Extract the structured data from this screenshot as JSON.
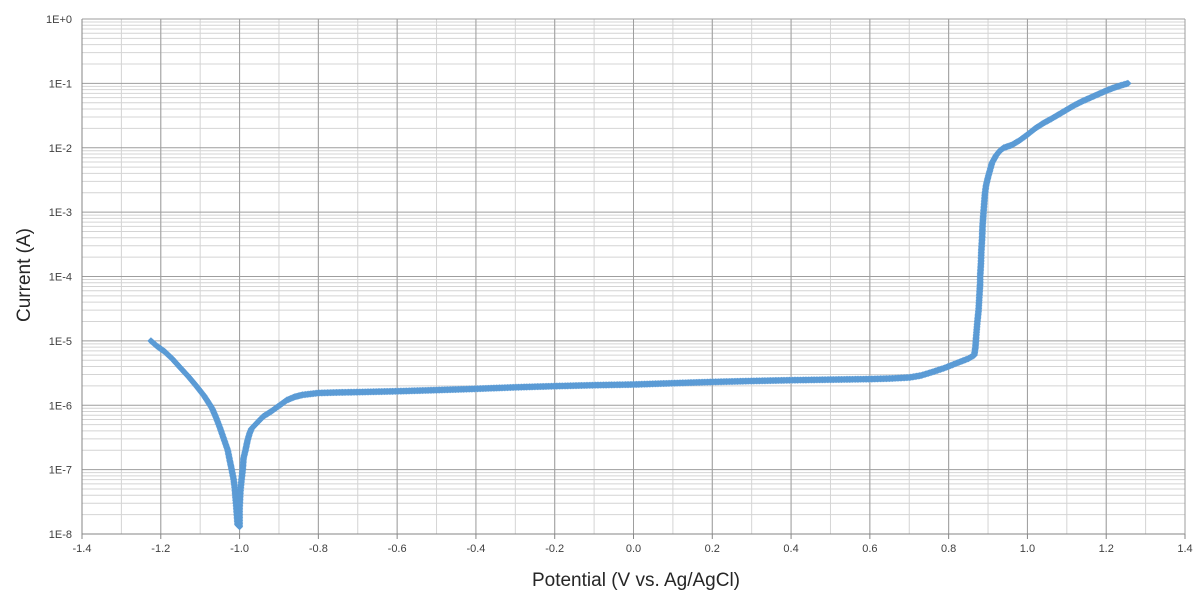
{
  "chart_data": {
    "type": "scatter",
    "title": "",
    "xlabel": "Potential (V vs. Ag/AgCl)",
    "ylabel": "Current (A)",
    "xlim": [
      -1.4,
      1.4
    ],
    "x_major_step": 0.2,
    "x_minor_step": 0.1,
    "ylim_log10": [
      -8,
      0
    ],
    "yscale": "log",
    "grid": true,
    "legend": "none",
    "x_tick_labels": [
      "-1.4",
      "-1.2",
      "-1.0",
      "-0.8",
      "-0.6",
      "-0.4",
      "-0.2",
      "0.0",
      "0.2",
      "0.4",
      "0.6",
      "0.8",
      "1.0",
      "1.2",
      "1.4"
    ],
    "y_tick_labels": [
      "1E-8",
      "1E-7",
      "1E-6",
      "1E-5",
      "1E-4",
      "1E-3",
      "1E-2",
      "1E-1",
      "1E+0"
    ],
    "colors": {
      "marker": "#5B9BD5",
      "major_grid": "#9e9e9e",
      "minor_grid": "#d4d4d4",
      "axis": "#868686"
    },
    "series": [
      {
        "marker": "diamond",
        "points": [
          [
            -1.225,
            1e-05
          ],
          [
            -1.21,
            8.3e-06
          ],
          [
            -1.19,
            6.8e-06
          ],
          [
            -1.17,
            5.2e-06
          ],
          [
            -1.15,
            3.8e-06
          ],
          [
            -1.13,
            2.8e-06
          ],
          [
            -1.11,
            2e-06
          ],
          [
            -1.09,
            1.4e-06
          ],
          [
            -1.07,
            9e-07
          ],
          [
            -1.06,
            6.5e-07
          ],
          [
            -1.05,
            4.5e-07
          ],
          [
            -1.04,
            3e-07
          ],
          [
            -1.03,
            2e-07
          ],
          [
            -1.025,
            1.4e-07
          ],
          [
            -1.02,
            1e-07
          ],
          [
            -1.015,
            7e-08
          ],
          [
            -1.012,
            5e-08
          ],
          [
            -1.01,
            3.5e-08
          ],
          [
            -1.008,
            2.5e-08
          ],
          [
            -1.005,
            1.4e-08
          ],
          [
            -1.0,
            1.3e-08
          ],
          [
            -1.0,
            2.5e-08
          ],
          [
            -0.998,
            4.5e-08
          ],
          [
            -0.995,
            7e-08
          ],
          [
            -0.992,
            1e-07
          ],
          [
            -0.99,
            1.5e-07
          ],
          [
            -0.985,
            2e-07
          ],
          [
            -0.98,
            2.8e-07
          ],
          [
            -0.975,
            3.6e-07
          ],
          [
            -0.97,
            4.3e-07
          ],
          [
            -0.96,
            5e-07
          ],
          [
            -0.95,
            5.8e-07
          ],
          [
            -0.94,
            6.7e-07
          ],
          [
            -0.92,
            8e-07
          ],
          [
            -0.9,
            9.8e-07
          ],
          [
            -0.88,
            1.2e-06
          ],
          [
            -0.86,
            1.35e-06
          ],
          [
            -0.84,
            1.45e-06
          ],
          [
            -0.82,
            1.5e-06
          ],
          [
            -0.8,
            1.55e-06
          ],
          [
            -0.75,
            1.58e-06
          ],
          [
            -0.7,
            1.6e-06
          ],
          [
            -0.6,
            1.65e-06
          ],
          [
            -0.5,
            1.72e-06
          ],
          [
            -0.4,
            1.8e-06
          ],
          [
            -0.3,
            1.9e-06
          ],
          [
            -0.2,
            1.98e-06
          ],
          [
            -0.1,
            2.05e-06
          ],
          [
            0.0,
            2.1e-06
          ],
          [
            0.1,
            2.2e-06
          ],
          [
            0.2,
            2.3e-06
          ],
          [
            0.3,
            2.38e-06
          ],
          [
            0.4,
            2.45e-06
          ],
          [
            0.5,
            2.5e-06
          ],
          [
            0.6,
            2.55e-06
          ],
          [
            0.65,
            2.6e-06
          ],
          [
            0.7,
            2.7e-06
          ],
          [
            0.73,
            2.9e-06
          ],
          [
            0.76,
            3.3e-06
          ],
          [
            0.79,
            3.8e-06
          ],
          [
            0.82,
            4.5e-06
          ],
          [
            0.85,
            5.3e-06
          ],
          [
            0.865,
            6e-06
          ],
          [
            0.868,
            8e-06
          ],
          [
            0.87,
            1.2e-05
          ],
          [
            0.873,
            2e-05
          ],
          [
            0.876,
            3e-05
          ],
          [
            0.878,
            5e-05
          ],
          [
            0.88,
            8e-05
          ],
          [
            0.88,
            0.0001
          ],
          [
            0.882,
            0.00016
          ],
          [
            0.883,
            0.00025
          ],
          [
            0.885,
            0.0004
          ],
          [
            0.886,
            0.0006
          ],
          [
            0.888,
            0.0009
          ],
          [
            0.89,
            0.0013
          ],
          [
            0.892,
            0.0019
          ],
          [
            0.895,
            0.0026
          ],
          [
            0.9,
            0.0035
          ],
          [
            0.905,
            0.0045
          ],
          [
            0.91,
            0.0058
          ],
          [
            0.92,
            0.0075
          ],
          [
            0.93,
            0.009
          ],
          [
            0.94,
            0.01
          ],
          [
            0.96,
            0.011
          ],
          [
            0.98,
            0.013
          ],
          [
            1.0,
            0.016
          ],
          [
            1.02,
            0.02
          ],
          [
            1.04,
            0.024
          ],
          [
            1.06,
            0.028
          ],
          [
            1.08,
            0.033
          ],
          [
            1.1,
            0.039
          ],
          [
            1.12,
            0.046
          ],
          [
            1.14,
            0.053
          ],
          [
            1.16,
            0.06
          ],
          [
            1.18,
            0.068
          ],
          [
            1.2,
            0.077
          ],
          [
            1.22,
            0.086
          ],
          [
            1.24,
            0.094
          ],
          [
            1.255,
            0.1
          ]
        ]
      }
    ]
  }
}
